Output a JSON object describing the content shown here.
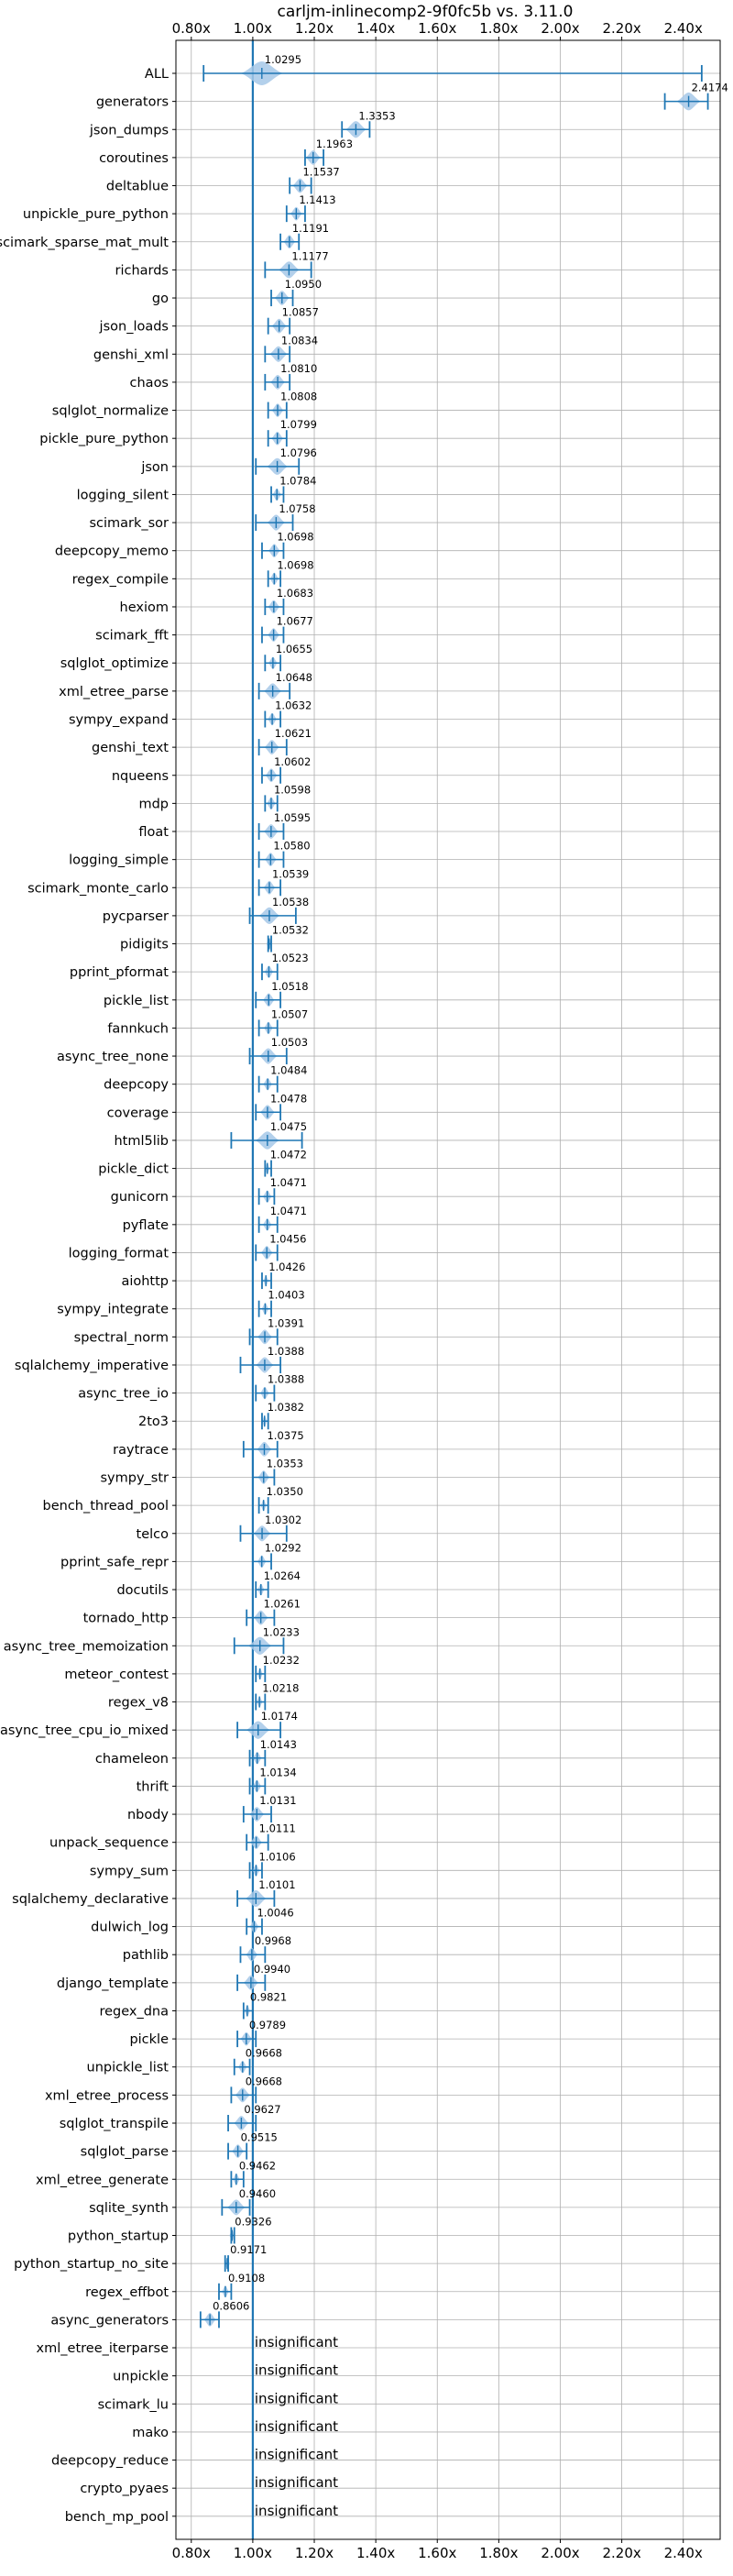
{
  "chart_data": {
    "type": "violin",
    "title": "carljm-inlinecomp2-9f0fc5b vs. 3.11.0",
    "xlabel": "",
    "ylabel": "",
    "xlim": [
      0.75,
      2.52
    ],
    "xticks": [
      0.8,
      1.0,
      1.2,
      1.4,
      1.6,
      1.8,
      2.0,
      2.2,
      2.4
    ],
    "xtick_labels": [
      "0.80x",
      "1.00x",
      "1.20x",
      "1.40x",
      "1.60x",
      "1.80x",
      "2.00x",
      "2.20x",
      "2.40x"
    ],
    "reference_line": 1.0,
    "grid": true,
    "color": "#1f77b4",
    "violin_color": "#a6c8e8",
    "insignificant_label": "insignificant",
    "benchmarks": [
      {
        "name": "ALL",
        "value": 1.0295,
        "label": "1.0295",
        "min": 0.84,
        "max": 2.46,
        "spread": 0.07
      },
      {
        "name": "generators",
        "value": 2.4174,
        "label": "2.4174",
        "min": 2.34,
        "max": 2.48,
        "spread": 0.04
      },
      {
        "name": "json_dumps",
        "value": 1.3353,
        "label": "1.3353",
        "min": 1.29,
        "max": 1.38,
        "spread": 0.035
      },
      {
        "name": "coroutines",
        "value": 1.1963,
        "label": "1.1963",
        "min": 1.17,
        "max": 1.23,
        "spread": 0.025
      },
      {
        "name": "deltablue",
        "value": 1.1537,
        "label": "1.1537",
        "min": 1.12,
        "max": 1.19,
        "spread": 0.025
      },
      {
        "name": "unpickle_pure_python",
        "value": 1.1413,
        "label": "1.1413",
        "min": 1.11,
        "max": 1.17,
        "spread": 0.02
      },
      {
        "name": "scimark_sparse_mat_mult",
        "value": 1.1191,
        "label": "1.1191",
        "min": 1.09,
        "max": 1.15,
        "spread": 0.02
      },
      {
        "name": "richards",
        "value": 1.1177,
        "label": "1.1177",
        "min": 1.04,
        "max": 1.19,
        "spread": 0.035
      },
      {
        "name": "go",
        "value": 1.095,
        "label": "1.0950",
        "min": 1.06,
        "max": 1.13,
        "spread": 0.025
      },
      {
        "name": "json_loads",
        "value": 1.0857,
        "label": "1.0857",
        "min": 1.05,
        "max": 1.12,
        "spread": 0.025
      },
      {
        "name": "genshi_xml",
        "value": 1.0834,
        "label": "1.0834",
        "min": 1.04,
        "max": 1.12,
        "spread": 0.03
      },
      {
        "name": "chaos",
        "value": 1.081,
        "label": "1.0810",
        "min": 1.04,
        "max": 1.12,
        "spread": 0.025
      },
      {
        "name": "sqlglot_normalize",
        "value": 1.0808,
        "label": "1.0808",
        "min": 1.05,
        "max": 1.11,
        "spread": 0.02
      },
      {
        "name": "pickle_pure_python",
        "value": 1.0799,
        "label": "1.0799",
        "min": 1.05,
        "max": 1.11,
        "spread": 0.02
      },
      {
        "name": "json",
        "value": 1.0796,
        "label": "1.0796",
        "min": 1.01,
        "max": 1.15,
        "spread": 0.035
      },
      {
        "name": "logging_silent",
        "value": 1.0784,
        "label": "1.0784",
        "min": 1.06,
        "max": 1.1,
        "spread": 0.015
      },
      {
        "name": "scimark_sor",
        "value": 1.0758,
        "label": "1.0758",
        "min": 1.01,
        "max": 1.13,
        "spread": 0.03
      },
      {
        "name": "deepcopy_memo",
        "value": 1.0698,
        "label": "1.0698",
        "min": 1.03,
        "max": 1.1,
        "spread": 0.02
      },
      {
        "name": "regex_compile",
        "value": 1.0698,
        "label": "1.0698",
        "min": 1.05,
        "max": 1.09,
        "spread": 0.015
      },
      {
        "name": "hexiom",
        "value": 1.0683,
        "label": "1.0683",
        "min": 1.04,
        "max": 1.1,
        "spread": 0.02
      },
      {
        "name": "scimark_fft",
        "value": 1.0677,
        "label": "1.0677",
        "min": 1.03,
        "max": 1.1,
        "spread": 0.02
      },
      {
        "name": "sqlglot_optimize",
        "value": 1.0655,
        "label": "1.0655",
        "min": 1.04,
        "max": 1.09,
        "spread": 0.015
      },
      {
        "name": "xml_etree_parse",
        "value": 1.0648,
        "label": "1.0648",
        "min": 1.02,
        "max": 1.12,
        "spread": 0.03
      },
      {
        "name": "sympy_expand",
        "value": 1.0632,
        "label": "1.0632",
        "min": 1.04,
        "max": 1.09,
        "spread": 0.015
      },
      {
        "name": "genshi_text",
        "value": 1.0621,
        "label": "1.0621",
        "min": 1.02,
        "max": 1.11,
        "spread": 0.025
      },
      {
        "name": "nqueens",
        "value": 1.0602,
        "label": "1.0602",
        "min": 1.03,
        "max": 1.09,
        "spread": 0.02
      },
      {
        "name": "mdp",
        "value": 1.0598,
        "label": "1.0598",
        "min": 1.04,
        "max": 1.08,
        "spread": 0.015
      },
      {
        "name": "float",
        "value": 1.0595,
        "label": "1.0595",
        "min": 1.02,
        "max": 1.1,
        "spread": 0.025
      },
      {
        "name": "logging_simple",
        "value": 1.058,
        "label": "1.0580",
        "min": 1.02,
        "max": 1.1,
        "spread": 0.02
      },
      {
        "name": "scimark_monte_carlo",
        "value": 1.0539,
        "label": "1.0539",
        "min": 1.02,
        "max": 1.09,
        "spread": 0.02
      },
      {
        "name": "pycparser",
        "value": 1.0538,
        "label": "1.0538",
        "min": 0.99,
        "max": 1.14,
        "spread": 0.035
      },
      {
        "name": "pidigits",
        "value": 1.0532,
        "label": "1.0532",
        "min": 1.05,
        "max": 1.06,
        "spread": 0.004
      },
      {
        "name": "pprint_pformat",
        "value": 1.0523,
        "label": "1.0523",
        "min": 1.03,
        "max": 1.08,
        "spread": 0.015
      },
      {
        "name": "pickle_list",
        "value": 1.0518,
        "label": "1.0518",
        "min": 1.01,
        "max": 1.09,
        "spread": 0.02
      },
      {
        "name": "fannkuch",
        "value": 1.0507,
        "label": "1.0507",
        "min": 1.02,
        "max": 1.08,
        "spread": 0.015
      },
      {
        "name": "async_tree_none",
        "value": 1.0503,
        "label": "1.0503",
        "min": 0.99,
        "max": 1.11,
        "spread": 0.03
      },
      {
        "name": "deepcopy",
        "value": 1.0484,
        "label": "1.0484",
        "min": 1.02,
        "max": 1.08,
        "spread": 0.015
      },
      {
        "name": "coverage",
        "value": 1.0478,
        "label": "1.0478",
        "min": 1.01,
        "max": 1.09,
        "spread": 0.025
      },
      {
        "name": "html5lib",
        "value": 1.0475,
        "label": "1.0475",
        "min": 0.93,
        "max": 1.16,
        "spread": 0.04
      },
      {
        "name": "pickle_dict",
        "value": 1.0472,
        "label": "1.0472",
        "min": 1.04,
        "max": 1.06,
        "spread": 0.008
      },
      {
        "name": "gunicorn",
        "value": 1.0471,
        "label": "1.0471",
        "min": 1.02,
        "max": 1.07,
        "spread": 0.015
      },
      {
        "name": "pyflate",
        "value": 1.0471,
        "label": "1.0471",
        "min": 1.02,
        "max": 1.08,
        "spread": 0.015
      },
      {
        "name": "logging_format",
        "value": 1.0456,
        "label": "1.0456",
        "min": 1.01,
        "max": 1.08,
        "spread": 0.02
      },
      {
        "name": "aiohttp",
        "value": 1.0426,
        "label": "1.0426",
        "min": 1.03,
        "max": 1.06,
        "spread": 0.008
      },
      {
        "name": "sympy_integrate",
        "value": 1.0403,
        "label": "1.0403",
        "min": 1.02,
        "max": 1.06,
        "spread": 0.012
      },
      {
        "name": "spectral_norm",
        "value": 1.0391,
        "label": "1.0391",
        "min": 0.99,
        "max": 1.08,
        "spread": 0.025
      },
      {
        "name": "sqlalchemy_imperative",
        "value": 1.0388,
        "label": "1.0388",
        "min": 0.96,
        "max": 1.09,
        "spread": 0.03
      },
      {
        "name": "async_tree_io",
        "value": 1.0388,
        "label": "1.0388",
        "min": 1.01,
        "max": 1.07,
        "spread": 0.015
      },
      {
        "name": "2to3",
        "value": 1.0382,
        "label": "1.0382",
        "min": 1.03,
        "max": 1.05,
        "spread": 0.008
      },
      {
        "name": "raytrace",
        "value": 1.0375,
        "label": "1.0375",
        "min": 0.97,
        "max": 1.08,
        "spread": 0.025
      },
      {
        "name": "sympy_str",
        "value": 1.0353,
        "label": "1.0353",
        "min": 1.0,
        "max": 1.07,
        "spread": 0.02
      },
      {
        "name": "bench_thread_pool",
        "value": 1.035,
        "label": "1.0350",
        "min": 1.02,
        "max": 1.05,
        "spread": 0.01
      },
      {
        "name": "telco",
        "value": 1.0302,
        "label": "1.0302",
        "min": 0.96,
        "max": 1.11,
        "spread": 0.03
      },
      {
        "name": "pprint_safe_repr",
        "value": 1.0292,
        "label": "1.0292",
        "min": 1.0,
        "max": 1.06,
        "spread": 0.015
      },
      {
        "name": "docutils",
        "value": 1.0264,
        "label": "1.0264",
        "min": 1.01,
        "max": 1.05,
        "spread": 0.012
      },
      {
        "name": "tornado_http",
        "value": 1.0261,
        "label": "1.0261",
        "min": 0.98,
        "max": 1.07,
        "spread": 0.025
      },
      {
        "name": "async_tree_memoization",
        "value": 1.0233,
        "label": "1.0233",
        "min": 0.94,
        "max": 1.1,
        "spread": 0.04
      },
      {
        "name": "meteor_contest",
        "value": 1.0232,
        "label": "1.0232",
        "min": 1.01,
        "max": 1.04,
        "spread": 0.01
      },
      {
        "name": "regex_v8",
        "value": 1.0218,
        "label": "1.0218",
        "min": 1.01,
        "max": 1.04,
        "spread": 0.01
      },
      {
        "name": "async_tree_cpu_io_mixed",
        "value": 1.0174,
        "label": "1.0174",
        "min": 0.95,
        "max": 1.09,
        "spread": 0.04
      },
      {
        "name": "chameleon",
        "value": 1.0143,
        "label": "1.0143",
        "min": 0.99,
        "max": 1.04,
        "spread": 0.015
      },
      {
        "name": "thrift",
        "value": 1.0134,
        "label": "1.0134",
        "min": 0.99,
        "max": 1.04,
        "spread": 0.015
      },
      {
        "name": "nbody",
        "value": 1.0131,
        "label": "1.0131",
        "min": 0.97,
        "max": 1.06,
        "spread": 0.025
      },
      {
        "name": "unpack_sequence",
        "value": 1.0111,
        "label": "1.0111",
        "min": 0.98,
        "max": 1.05,
        "spread": 0.02
      },
      {
        "name": "sympy_sum",
        "value": 1.0106,
        "label": "1.0106",
        "min": 0.99,
        "max": 1.03,
        "spread": 0.012
      },
      {
        "name": "sqlalchemy_declarative",
        "value": 1.0101,
        "label": "1.0101",
        "min": 0.95,
        "max": 1.07,
        "spread": 0.035
      },
      {
        "name": "dulwich_log",
        "value": 1.0046,
        "label": "1.0046",
        "min": 0.98,
        "max": 1.03,
        "spread": 0.015
      },
      {
        "name": "pathlib",
        "value": 0.9968,
        "label": "0.9968",
        "min": 0.96,
        "max": 1.04,
        "spread": 0.02
      },
      {
        "name": "django_template",
        "value": 0.994,
        "label": "0.9940",
        "min": 0.95,
        "max": 1.04,
        "spread": 0.025
      },
      {
        "name": "regex_dna",
        "value": 0.9821,
        "label": "0.9821",
        "min": 0.97,
        "max": 1.0,
        "spread": 0.01
      },
      {
        "name": "pickle",
        "value": 0.9789,
        "label": "0.9789",
        "min": 0.95,
        "max": 1.01,
        "spread": 0.02
      },
      {
        "name": "unpickle_list",
        "value": 0.9668,
        "label": "0.9668",
        "min": 0.94,
        "max": 0.99,
        "spread": 0.015
      },
      {
        "name": "xml_etree_process",
        "value": 0.9668,
        "label": "0.9668",
        "min": 0.93,
        "max": 1.01,
        "spread": 0.025
      },
      {
        "name": "sqlglot_transpile",
        "value": 0.9627,
        "label": "0.9627",
        "min": 0.92,
        "max": 1.01,
        "spread": 0.025
      },
      {
        "name": "sqlglot_parse",
        "value": 0.9515,
        "label": "0.9515",
        "min": 0.92,
        "max": 0.98,
        "spread": 0.02
      },
      {
        "name": "xml_etree_generate",
        "value": 0.9462,
        "label": "0.9462",
        "min": 0.93,
        "max": 0.97,
        "spread": 0.012
      },
      {
        "name": "sqlite_synth",
        "value": 0.946,
        "label": "0.9460",
        "min": 0.9,
        "max": 0.99,
        "spread": 0.03
      },
      {
        "name": "python_startup",
        "value": 0.9326,
        "label": "0.9326",
        "min": 0.93,
        "max": 0.94,
        "spread": 0.004
      },
      {
        "name": "python_startup_no_site",
        "value": 0.9171,
        "label": "0.9171",
        "min": 0.91,
        "max": 0.92,
        "spread": 0.004
      },
      {
        "name": "regex_effbot",
        "value": 0.9108,
        "label": "0.9108",
        "min": 0.89,
        "max": 0.93,
        "spread": 0.012
      },
      {
        "name": "async_generators",
        "value": 0.8606,
        "label": "0.8606",
        "min": 0.83,
        "max": 0.89,
        "spread": 0.02
      },
      {
        "name": "xml_etree_iterparse",
        "value": null,
        "label": "insignificant"
      },
      {
        "name": "unpickle",
        "value": null,
        "label": "insignificant"
      },
      {
        "name": "scimark_lu",
        "value": null,
        "label": "insignificant"
      },
      {
        "name": "mako",
        "value": null,
        "label": "insignificant"
      },
      {
        "name": "deepcopy_reduce",
        "value": null,
        "label": "insignificant"
      },
      {
        "name": "crypto_pyaes",
        "value": null,
        "label": "insignificant"
      },
      {
        "name": "bench_mp_pool",
        "value": null,
        "label": "insignificant"
      }
    ]
  }
}
